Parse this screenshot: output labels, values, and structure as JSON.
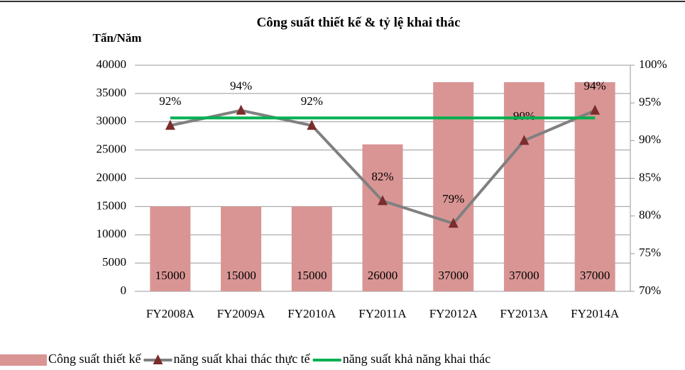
{
  "chart_data": {
    "type": "bar_line",
    "title": "Công suất thiết kế & tỷ lệ khai thác",
    "y_label": "Tấn/Năm",
    "categories": [
      "FY2008A",
      "FY2009A",
      "FY2010A",
      "FY2011A",
      "FY2012A",
      "FY2013A",
      "FY2014A"
    ],
    "series": [
      {
        "name": "Công suất thiết kế",
        "type": "bar",
        "color": "#d99594",
        "values": [
          15000,
          15000,
          15000,
          26000,
          37000,
          37000,
          37000
        ]
      },
      {
        "name": "năng suất khai thác thực tế",
        "type": "line",
        "axis": "y2",
        "color": "#808080",
        "marker_color": "#7b2c2c",
        "values": [
          92,
          94,
          92,
          82,
          79,
          90,
          94
        ],
        "value_labels": [
          "92%",
          "94%",
          "92%",
          "82%",
          "79%",
          "90%",
          "94%"
        ]
      },
      {
        "name": "năng suất khả năng khai thác",
        "type": "line",
        "axis": "y2",
        "color": "#00b050",
        "values": [
          93,
          93,
          93,
          93,
          93,
          93,
          93
        ]
      }
    ],
    "ylim": [
      0,
      40000
    ],
    "yticks": [
      0,
      5000,
      10000,
      15000,
      20000,
      25000,
      30000,
      35000,
      40000
    ],
    "y2lim": [
      70,
      100
    ],
    "y2ticks": [
      {
        "value": 70,
        "label": "70%"
      },
      {
        "value": 75,
        "label": "75%"
      },
      {
        "value": 80,
        "label": "80%"
      },
      {
        "value": 85,
        "label": "85%"
      },
      {
        "value": 90,
        "label": "90%"
      },
      {
        "value": 95,
        "label": "95%"
      },
      {
        "value": 100,
        "label": "100%"
      }
    ],
    "grid": true
  }
}
